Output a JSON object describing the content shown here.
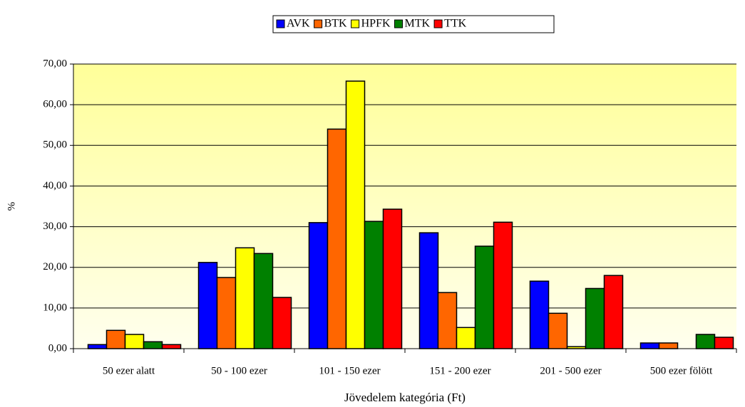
{
  "chart_data": {
    "type": "bar",
    "x_label": "Jövedelem kategória (Ft)",
    "y_label": "%",
    "categories": [
      "50 ezer alatt",
      "50 - 100 ezer",
      "101 - 150 ezer",
      "151 - 200 ezer",
      "201 - 500 ezer",
      "500 ezer fölött"
    ],
    "series": [
      {
        "name": "AVK",
        "color": "#0000ff",
        "values": [
          1.0,
          21.2,
          31.0,
          28.5,
          16.6,
          1.4
        ]
      },
      {
        "name": "BTK",
        "color": "#ff6600",
        "values": [
          4.5,
          17.5,
          54.0,
          13.8,
          8.7,
          1.4
        ]
      },
      {
        "name": "HPFK",
        "color": "#ffff00",
        "values": [
          3.5,
          24.8,
          65.8,
          5.2,
          0.5,
          0
        ]
      },
      {
        "name": "MTK",
        "color": "#008000",
        "values": [
          1.7,
          23.4,
          31.3,
          25.2,
          14.8,
          3.5
        ]
      },
      {
        "name": "TTK",
        "color": "#ff0000",
        "values": [
          1.0,
          12.6,
          34.3,
          31.1,
          18.0,
          2.8
        ]
      }
    ],
    "ylim": [
      0,
      70
    ],
    "yticks": [
      {
        "value": 0,
        "label": "0,00"
      },
      {
        "value": 10,
        "label": "10,00"
      },
      {
        "value": 20,
        "label": "20,00"
      },
      {
        "value": 30,
        "label": "30,00"
      },
      {
        "value": 40,
        "label": "40,00"
      },
      {
        "value": 50,
        "label": "50,00"
      },
      {
        "value": 60,
        "label": "60,00"
      },
      {
        "value": 70,
        "label": "70,00"
      }
    ],
    "grid": true,
    "legend_position": "top"
  }
}
